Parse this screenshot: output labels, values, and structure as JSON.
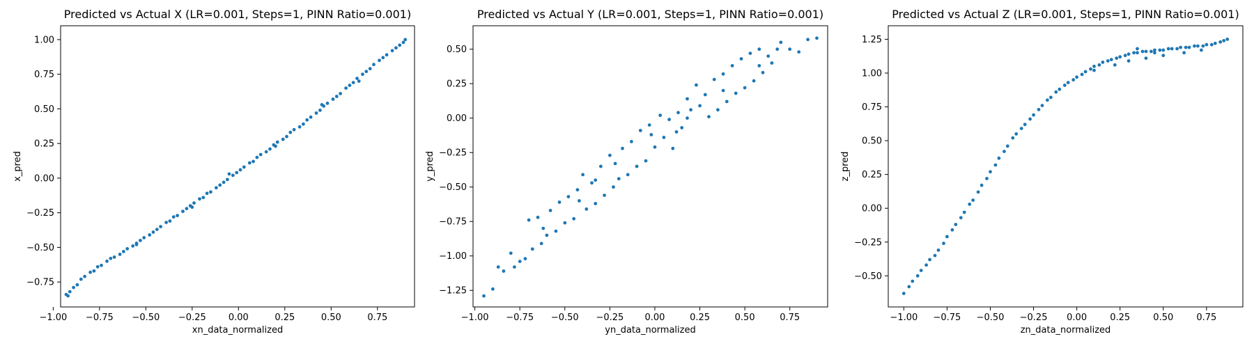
{
  "chart_data": [
    {
      "type": "scatter",
      "title": "Predicted vs Actual X (LR=0.001, Steps=1, PINN Ratio=0.001)",
      "xlabel": "xn_data_normalized",
      "ylabel": "x_pred",
      "xlim": [
        -0.96,
        0.95
      ],
      "ylim": [
        -0.93,
        1.1
      ],
      "xticks": [
        -1.0,
        -0.75,
        -0.5,
        -0.25,
        0.0,
        0.25,
        0.5,
        0.75
      ],
      "xtick_labels": [
        "−1.00",
        "−0.75",
        "−0.50",
        "−0.25",
        "0.00",
        "0.25",
        "0.50",
        "0.75"
      ],
      "yticks": [
        -0.75,
        -0.5,
        -0.25,
        0.0,
        0.25,
        0.5,
        0.75,
        1.0
      ],
      "ytick_labels": [
        "−0.75",
        "−0.50",
        "−0.25",
        "0.00",
        "0.25",
        "0.50",
        "0.75",
        "1.00"
      ],
      "grid": false,
      "color": "#1f77b4",
      "points": [
        [
          -0.93,
          -0.84
        ],
        [
          -0.92,
          -0.85
        ],
        [
          -0.91,
          -0.82
        ],
        [
          -0.89,
          -0.79
        ],
        [
          -0.87,
          -0.77
        ],
        [
          -0.85,
          -0.73
        ],
        [
          -0.83,
          -0.71
        ],
        [
          -0.8,
          -0.68
        ],
        [
          -0.78,
          -0.67
        ],
        [
          -0.76,
          -0.64
        ],
        [
          -0.74,
          -0.63
        ],
        [
          -0.71,
          -0.6
        ],
        [
          -0.69,
          -0.58
        ],
        [
          -0.67,
          -0.57
        ],
        [
          -0.64,
          -0.55
        ],
        [
          -0.62,
          -0.53
        ],
        [
          -0.6,
          -0.51
        ],
        [
          -0.57,
          -0.49
        ],
        [
          -0.55,
          -0.47
        ],
        [
          -0.53,
          -0.45
        ],
        [
          -0.51,
          -0.43
        ],
        [
          -0.48,
          -0.41
        ],
        [
          -0.46,
          -0.39
        ],
        [
          -0.44,
          -0.37
        ],
        [
          -0.42,
          -0.35
        ],
        [
          -0.39,
          -0.32
        ],
        [
          -0.37,
          -0.31
        ],
        [
          -0.35,
          -0.28
        ],
        [
          -0.33,
          -0.27
        ],
        [
          -0.3,
          -0.24
        ],
        [
          -0.28,
          -0.22
        ],
        [
          -0.26,
          -0.2
        ],
        [
          -0.24,
          -0.18
        ],
        [
          -0.21,
          -0.15
        ],
        [
          -0.19,
          -0.14
        ],
        [
          -0.17,
          -0.11
        ],
        [
          -0.15,
          -0.1
        ],
        [
          -0.12,
          -0.07
        ],
        [
          -0.1,
          -0.05
        ],
        [
          -0.08,
          -0.03
        ],
        [
          -0.06,
          -0.01
        ],
        [
          -0.03,
          0.02
        ],
        [
          -0.01,
          0.04
        ],
        [
          0.01,
          0.06
        ],
        [
          0.03,
          0.08
        ],
        [
          0.06,
          0.11
        ],
        [
          0.08,
          0.12
        ],
        [
          0.1,
          0.15
        ],
        [
          0.12,
          0.17
        ],
        [
          0.15,
          0.19
        ],
        [
          0.17,
          0.21
        ],
        [
          0.19,
          0.24
        ],
        [
          0.21,
          0.26
        ],
        [
          0.24,
          0.28
        ],
        [
          0.26,
          0.3
        ],
        [
          0.28,
          0.33
        ],
        [
          0.3,
          0.35
        ],
        [
          0.33,
          0.37
        ],
        [
          0.35,
          0.39
        ],
        [
          0.37,
          0.42
        ],
        [
          0.39,
          0.44
        ],
        [
          0.42,
          0.47
        ],
        [
          0.44,
          0.49
        ],
        [
          0.46,
          0.52
        ],
        [
          0.48,
          0.54
        ],
        [
          0.51,
          0.57
        ],
        [
          0.53,
          0.59
        ],
        [
          0.55,
          0.61
        ],
        [
          0.58,
          0.65
        ],
        [
          0.6,
          0.67
        ],
        [
          0.62,
          0.69
        ],
        [
          0.64,
          0.72
        ],
        [
          0.67,
          0.75
        ],
        [
          0.69,
          0.77
        ],
        [
          0.71,
          0.79
        ],
        [
          0.73,
          0.82
        ],
        [
          0.76,
          0.85
        ],
        [
          0.78,
          0.87
        ],
        [
          0.8,
          0.89
        ],
        [
          0.83,
          0.92
        ],
        [
          0.85,
          0.94
        ],
        [
          0.87,
          0.96
        ],
        [
          0.89,
          0.98
        ],
        [
          0.9,
          1.0
        ],
        [
          -0.25,
          -0.21
        ],
        [
          -0.05,
          0.03
        ],
        [
          0.2,
          0.23
        ],
        [
          0.45,
          0.53
        ],
        [
          0.65,
          0.7
        ],
        [
          -0.55,
          -0.48
        ]
      ]
    },
    {
      "type": "scatter",
      "title": "Predicted vs Actual Y (LR=0.001, Steps=1, PINN Ratio=0.001)",
      "xlabel": "yn_data_normalized",
      "ylabel": "y_pred",
      "xlim": [
        -1.01,
        0.96
      ],
      "ylim": [
        -1.37,
        0.67
      ],
      "xticks": [
        -1.0,
        -0.75,
        -0.5,
        -0.25,
        0.0,
        0.25,
        0.5,
        0.75
      ],
      "xtick_labels": [
        "−1.00",
        "−0.75",
        "−0.50",
        "−0.25",
        "0.00",
        "0.25",
        "0.50",
        "0.75"
      ],
      "yticks": [
        -1.25,
        -1.0,
        -0.75,
        -0.5,
        -0.25,
        0.0,
        0.25,
        0.5
      ],
      "ytick_labels": [
        "−1.25",
        "−1.00",
        "−0.75",
        "−0.50",
        "−0.25",
        "0.00",
        "0.25",
        "0.50"
      ],
      "grid": false,
      "color": "#1f77b4",
      "points": [
        [
          -0.95,
          -1.29
        ],
        [
          -0.9,
          -1.24
        ],
        [
          -0.87,
          -1.08
        ],
        [
          -0.84,
          -1.11
        ],
        [
          -0.8,
          -0.98
        ],
        [
          -0.78,
          -1.08
        ],
        [
          -0.75,
          -1.04
        ],
        [
          -0.72,
          -1.02
        ],
        [
          -0.7,
          -0.74
        ],
        [
          -0.68,
          -0.95
        ],
        [
          -0.65,
          -0.72
        ],
        [
          -0.63,
          -0.91
        ],
        [
          -0.6,
          -0.85
        ],
        [
          -0.58,
          -0.67
        ],
        [
          -0.55,
          -0.82
        ],
        [
          -0.53,
          -0.61
        ],
        [
          -0.5,
          -0.76
        ],
        [
          -0.48,
          -0.57
        ],
        [
          -0.45,
          -0.73
        ],
        [
          -0.43,
          -0.52
        ],
        [
          -0.4,
          -0.41
        ],
        [
          -0.38,
          -0.66
        ],
        [
          -0.35,
          -0.47
        ],
        [
          -0.33,
          -0.62
        ],
        [
          -0.3,
          -0.35
        ],
        [
          -0.28,
          -0.56
        ],
        [
          -0.25,
          -0.27
        ],
        [
          -0.23,
          -0.5
        ],
        [
          -0.2,
          -0.44
        ],
        [
          -0.18,
          -0.22
        ],
        [
          -0.15,
          -0.41
        ],
        [
          -0.13,
          -0.17
        ],
        [
          -0.1,
          -0.35
        ],
        [
          -0.08,
          -0.09
        ],
        [
          -0.05,
          -0.31
        ],
        [
          -0.03,
          -0.05
        ],
        [
          0.0,
          -0.21
        ],
        [
          0.03,
          0.02
        ],
        [
          0.05,
          -0.14
        ],
        [
          0.08,
          -0.01
        ],
        [
          0.1,
          -0.22
        ],
        [
          0.13,
          0.04
        ],
        [
          0.15,
          -0.07
        ],
        [
          0.18,
          0.14
        ],
        [
          0.2,
          0.06
        ],
        [
          0.23,
          0.24
        ],
        [
          0.25,
          0.09
        ],
        [
          0.28,
          0.17
        ],
        [
          0.3,
          0.01
        ],
        [
          0.33,
          0.28
        ],
        [
          0.35,
          0.06
        ],
        [
          0.38,
          0.32
        ],
        [
          0.4,
          0.12
        ],
        [
          0.43,
          0.38
        ],
        [
          0.45,
          0.18
        ],
        [
          0.48,
          0.43
        ],
        [
          0.5,
          0.22
        ],
        [
          0.53,
          0.47
        ],
        [
          0.55,
          0.27
        ],
        [
          0.58,
          0.5
        ],
        [
          0.6,
          0.33
        ],
        [
          0.63,
          0.45
        ],
        [
          0.65,
          0.4
        ],
        [
          0.7,
          0.55
        ],
        [
          0.75,
          0.5
        ],
        [
          0.8,
          0.48
        ],
        [
          0.85,
          0.57
        ],
        [
          0.9,
          0.58
        ],
        [
          -0.62,
          -0.8
        ],
        [
          -0.42,
          -0.6
        ],
        [
          -0.22,
          -0.33
        ],
        [
          -0.02,
          -0.12
        ],
        [
          0.18,
          0.0
        ],
        [
          0.38,
          0.2
        ],
        [
          0.58,
          0.38
        ],
        [
          -0.33,
          -0.45
        ],
        [
          0.12,
          -0.1
        ],
        [
          0.68,
          0.5
        ]
      ]
    },
    {
      "type": "scatter",
      "title": "Predicted vs Actual Z (LR=0.001, Steps=1, PINN Ratio=0.001)",
      "xlabel": "zn_data_normalized",
      "ylabel": "z_pred",
      "xlim": [
        -1.09,
        0.96
      ],
      "ylim": [
        -0.73,
        1.35
      ],
      "xticks": [
        -1.0,
        -0.75,
        -0.5,
        -0.25,
        0.0,
        0.25,
        0.5,
        0.75
      ],
      "xtick_labels": [
        "−1.00",
        "−0.75",
        "−0.50",
        "−0.25",
        "0.00",
        "0.25",
        "0.50",
        "0.75"
      ],
      "yticks": [
        -0.5,
        -0.25,
        0.0,
        0.25,
        0.5,
        0.75,
        1.0,
        1.25
      ],
      "ytick_labels": [
        "−0.50",
        "−0.25",
        "0.00",
        "0.25",
        "0.50",
        "0.75",
        "1.00",
        "1.25"
      ],
      "grid": false,
      "color": "#1f77b4",
      "points": [
        [
          -1.0,
          -0.63
        ],
        [
          -0.97,
          -0.58
        ],
        [
          -0.95,
          -0.54
        ],
        [
          -0.92,
          -0.5
        ],
        [
          -0.9,
          -0.46
        ],
        [
          -0.87,
          -0.42
        ],
        [
          -0.85,
          -0.38
        ],
        [
          -0.82,
          -0.35
        ],
        [
          -0.8,
          -0.31
        ],
        [
          -0.77,
          -0.26
        ],
        [
          -0.75,
          -0.21
        ],
        [
          -0.72,
          -0.16
        ],
        [
          -0.7,
          -0.12
        ],
        [
          -0.67,
          -0.07
        ],
        [
          -0.65,
          -0.03
        ],
        [
          -0.62,
          0.03
        ],
        [
          -0.6,
          0.06
        ],
        [
          -0.57,
          0.12
        ],
        [
          -0.55,
          0.17
        ],
        [
          -0.52,
          0.22
        ],
        [
          -0.5,
          0.27
        ],
        [
          -0.47,
          0.32
        ],
        [
          -0.45,
          0.37
        ],
        [
          -0.42,
          0.42
        ],
        [
          -0.4,
          0.46
        ],
        [
          -0.37,
          0.52
        ],
        [
          -0.35,
          0.55
        ],
        [
          -0.32,
          0.59
        ],
        [
          -0.3,
          0.62
        ],
        [
          -0.27,
          0.66
        ],
        [
          -0.25,
          0.69
        ],
        [
          -0.22,
          0.73
        ],
        [
          -0.2,
          0.76
        ],
        [
          -0.17,
          0.8
        ],
        [
          -0.15,
          0.82
        ],
        [
          -0.12,
          0.86
        ],
        [
          -0.1,
          0.88
        ],
        [
          -0.07,
          0.91
        ],
        [
          -0.05,
          0.93
        ],
        [
          -0.02,
          0.95
        ],
        [
          0.0,
          0.97
        ],
        [
          0.03,
          0.99
        ],
        [
          0.05,
          1.01
        ],
        [
          0.08,
          1.03
        ],
        [
          0.1,
          1.05
        ],
        [
          0.13,
          1.06
        ],
        [
          0.15,
          1.08
        ],
        [
          0.18,
          1.09
        ],
        [
          0.2,
          1.1
        ],
        [
          0.23,
          1.11
        ],
        [
          0.25,
          1.12
        ],
        [
          0.28,
          1.13
        ],
        [
          0.3,
          1.14
        ],
        [
          0.33,
          1.15
        ],
        [
          0.35,
          1.15
        ],
        [
          0.38,
          1.16
        ],
        [
          0.4,
          1.16
        ],
        [
          0.43,
          1.16
        ],
        [
          0.45,
          1.17
        ],
        [
          0.48,
          1.17
        ],
        [
          0.5,
          1.17
        ],
        [
          0.53,
          1.18
        ],
        [
          0.55,
          1.18
        ],
        [
          0.58,
          1.18
        ],
        [
          0.6,
          1.19
        ],
        [
          0.63,
          1.19
        ],
        [
          0.65,
          1.19
        ],
        [
          0.68,
          1.2
        ],
        [
          0.7,
          1.2
        ],
        [
          0.73,
          1.2
        ],
        [
          0.75,
          1.21
        ],
        [
          0.78,
          1.21
        ],
        [
          0.8,
          1.22
        ],
        [
          0.83,
          1.23
        ],
        [
          0.85,
          1.24
        ],
        [
          0.87,
          1.25
        ],
        [
          0.22,
          1.06
        ],
        [
          0.3,
          1.09
        ],
        [
          0.4,
          1.11
        ],
        [
          0.5,
          1.13
        ],
        [
          0.62,
          1.15
        ],
        [
          0.72,
          1.17
        ],
        [
          0.35,
          1.18
        ],
        [
          0.45,
          1.15
        ],
        [
          0.1,
          1.02
        ]
      ]
    }
  ]
}
